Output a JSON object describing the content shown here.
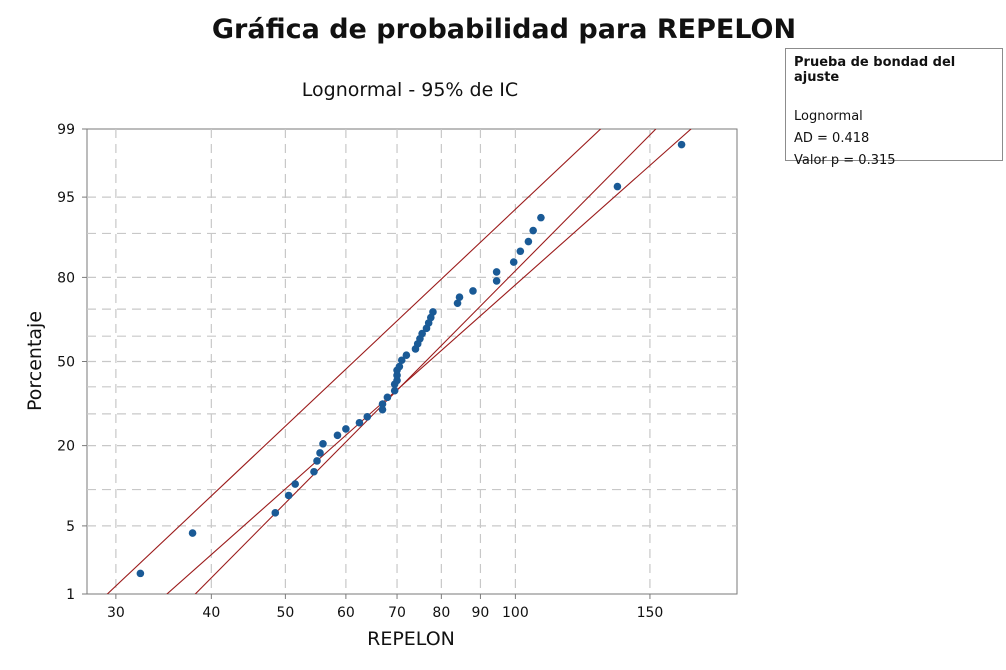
{
  "chart_data": {
    "type": "scatter",
    "title": "Gráfica de probabilidad para REPELON",
    "subtitle": "Lognormal - 95% de IC",
    "xlabel": "REPELON",
    "ylabel": "Porcentaje",
    "x_scale": "log",
    "y_scale": "normal-probability",
    "xlim": [
      27.5,
      195
    ],
    "ylim": [
      1,
      99
    ],
    "x_ticks": [
      30,
      40,
      50,
      60,
      70,
      80,
      90,
      100,
      150
    ],
    "x_grid": [
      30,
      40,
      50,
      60,
      70,
      80,
      90,
      100,
      150,
      200
    ],
    "y_ticks": [
      1,
      5,
      20,
      50,
      80,
      95,
      99
    ],
    "y_grid": [
      1,
      5,
      10,
      20,
      30,
      40,
      50,
      60,
      70,
      80,
      90,
      95,
      99
    ],
    "grid": true,
    "series": [
      {
        "values": [
          {
            "x": 32.3,
            "y": 1.7
          },
          {
            "x": 37.8,
            "y": 4.3
          },
          {
            "x": 48.5,
            "y": 6.5
          },
          {
            "x": 50.5,
            "y": 9.0
          },
          {
            "x": 51.5,
            "y": 11.0
          },
          {
            "x": 54.5,
            "y": 13.5
          },
          {
            "x": 55.0,
            "y": 16.0
          },
          {
            "x": 55.5,
            "y": 18.0
          },
          {
            "x": 56.0,
            "y": 20.5
          },
          {
            "x": 58.5,
            "y": 23.0
          },
          {
            "x": 60.0,
            "y": 25.0
          },
          {
            "x": 62.5,
            "y": 27.0
          },
          {
            "x": 64.0,
            "y": 29.0
          },
          {
            "x": 67.0,
            "y": 31.5
          },
          {
            "x": 67.0,
            "y": 33.5
          },
          {
            "x": 68.0,
            "y": 36.0
          },
          {
            "x": 69.5,
            "y": 38.5
          },
          {
            "x": 69.5,
            "y": 41.0
          },
          {
            "x": 70.0,
            "y": 42.5
          },
          {
            "x": 70.0,
            "y": 44.5
          },
          {
            "x": 70.0,
            "y": 46.5
          },
          {
            "x": 70.5,
            "y": 48.0
          },
          {
            "x": 71.0,
            "y": 50.5
          },
          {
            "x": 72.0,
            "y": 52.5
          },
          {
            "x": 74.0,
            "y": 55.0
          },
          {
            "x": 74.5,
            "y": 57.0
          },
          {
            "x": 75.0,
            "y": 59.0
          },
          {
            "x": 75.5,
            "y": 61.0
          },
          {
            "x": 76.5,
            "y": 63.0
          },
          {
            "x": 77.0,
            "y": 65.0
          },
          {
            "x": 77.5,
            "y": 67.0
          },
          {
            "x": 78.0,
            "y": 69.0
          },
          {
            "x": 84.0,
            "y": 72.0
          },
          {
            "x": 84.5,
            "y": 74.0
          },
          {
            "x": 88.0,
            "y": 76.0
          },
          {
            "x": 94.5,
            "y": 79.0
          },
          {
            "x": 94.5,
            "y": 81.5
          },
          {
            "x": 99.5,
            "y": 84.0
          },
          {
            "x": 101.5,
            "y": 86.5
          },
          {
            "x": 104.0,
            "y": 88.5
          },
          {
            "x": 105.5,
            "y": 90.5
          },
          {
            "x": 108.0,
            "y": 92.5
          },
          {
            "x": 136.0,
            "y": 96.0
          },
          {
            "x": 165.0,
            "y": 98.5
          }
        ]
      }
    ],
    "fit_line": {
      "x0": 27.0,
      "y0": 0.1,
      "x1": 220.0,
      "y1": 99.9
    },
    "ci_lower": {
      "x0": 35.0,
      "y0": 0.45,
      "x1": 180.0,
      "y1": 99.8
    },
    "ci_upper": {
      "x0": 27.0,
      "y0": 0.5,
      "x1": 165.0,
      "y1": 99.9
    },
    "colors": {
      "points": "#1a5a96",
      "fit": "#9b1b1b",
      "grid": "#c8c8c8",
      "axis": "#7a7a7a"
    }
  },
  "legend_box": {
    "title": "Prueba de bondad del ajuste",
    "distribution": "Lognormal",
    "ad": "AD = 0.418",
    "p_value": "Valor p = 0.315"
  }
}
